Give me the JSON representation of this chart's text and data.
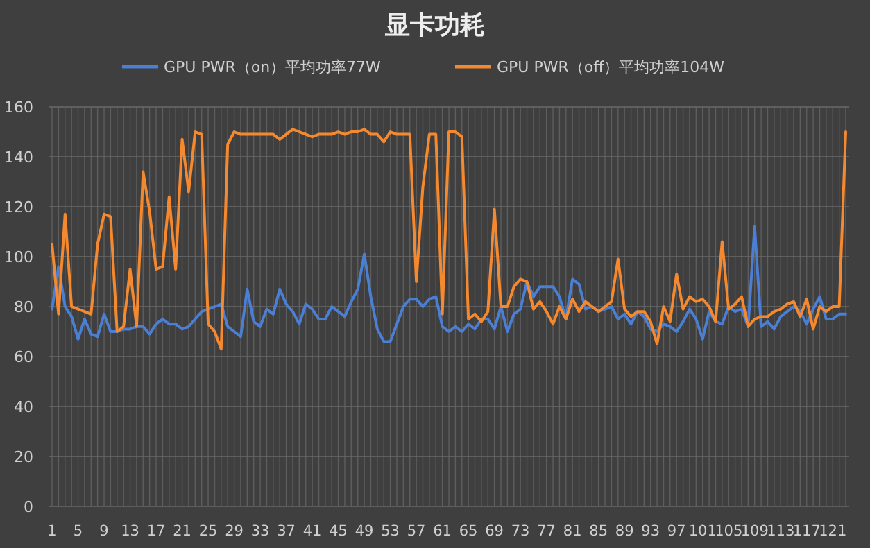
{
  "chart_data": {
    "type": "line",
    "title": "显卡功耗",
    "categories": [
      "1",
      null,
      null,
      null,
      "5",
      null,
      null,
      null,
      "9",
      null,
      null,
      null,
      "13",
      null,
      null,
      null,
      "17",
      null,
      null,
      null,
      "21",
      null,
      null,
      null,
      "25",
      null,
      null,
      null,
      "29",
      null,
      null,
      null,
      "33",
      null,
      null,
      null,
      "37",
      null,
      null,
      null,
      "41",
      null,
      null,
      null,
      "45",
      null,
      null,
      null,
      "49",
      null,
      null,
      null,
      "53",
      null,
      null,
      null,
      "57",
      null,
      null,
      null,
      "61",
      null,
      null,
      null,
      "65",
      null,
      null,
      null,
      "69",
      null,
      null,
      null,
      "73",
      null,
      null,
      null,
      "77",
      null,
      null,
      null,
      "81",
      null,
      null,
      null,
      "85",
      null,
      null,
      null,
      "89",
      null,
      null,
      null,
      "93",
      null,
      null,
      null,
      "97",
      null,
      null,
      null,
      "101",
      null,
      null,
      null,
      "105",
      null,
      null,
      null,
      "109",
      null,
      null,
      null,
      "113",
      null,
      null,
      null,
      "117",
      null,
      null,
      null,
      "121",
      null,
      null
    ],
    "series": [
      {
        "name": "GPU PWR（on）平均功率77W",
        "color": "#4a7fd4",
        "values": [
          79,
          96,
          80,
          76,
          67,
          75,
          69,
          68,
          77,
          70,
          70,
          71,
          71,
          72,
          72,
          69,
          73,
          75,
          73,
          73,
          71,
          72,
          75,
          78,
          79,
          80,
          81,
          72,
          70,
          68,
          87,
          74,
          72,
          79,
          77,
          87,
          81,
          78,
          73,
          81,
          79,
          75,
          75,
          80,
          78,
          76,
          82,
          87,
          101,
          84,
          71,
          66,
          66,
          73,
          80,
          83,
          83,
          80,
          83,
          84,
          72,
          70,
          72,
          70,
          73,
          71,
          75,
          75,
          71,
          80,
          70,
          77,
          79,
          90,
          84,
          88,
          88,
          88,
          84,
          75,
          91,
          89,
          79,
          80,
          78,
          79,
          80,
          75,
          77,
          73,
          78,
          76,
          71,
          70,
          73,
          72,
          70,
          74,
          79,
          75,
          67,
          78,
          74,
          73,
          80,
          78,
          79,
          72,
          112,
          72,
          74,
          71,
          76,
          78,
          80,
          78,
          73,
          79,
          84,
          75,
          75,
          77,
          77
        ]
      },
      {
        "name": "GPU PWR（off）平均功率104W",
        "color": "#f5892f",
        "values": [
          105,
          77,
          117,
          80,
          79,
          78,
          77,
          105,
          117,
          116,
          70,
          72,
          95,
          72,
          134,
          118,
          95,
          96,
          124,
          95,
          147,
          126,
          150,
          149,
          73,
          70,
          63,
          145,
          150,
          149,
          149,
          149,
          149,
          149,
          149,
          147,
          149,
          151,
          150,
          149,
          148,
          149,
          149,
          149,
          150,
          149,
          150,
          150,
          151,
          149,
          149,
          146,
          150,
          149,
          149,
          149,
          90,
          128,
          149,
          149,
          77,
          150,
          150,
          148,
          75,
          77,
          74,
          78,
          119,
          80,
          80,
          88,
          91,
          90,
          79,
          82,
          78,
          73,
          80,
          75,
          83,
          78,
          82,
          80,
          78,
          80,
          82,
          99,
          79,
          76,
          78,
          78,
          74,
          65,
          80,
          74,
          93,
          79,
          84,
          82,
          83,
          80,
          74,
          106,
          79,
          81,
          84,
          72,
          75,
          76,
          76,
          78,
          79,
          81,
          82,
          76,
          83,
          71,
          80,
          78,
          80,
          80,
          150
        ]
      }
    ],
    "ylim": [
      0,
      160
    ],
    "yticks": [
      0,
      20,
      40,
      60,
      80,
      100,
      120,
      140,
      160
    ],
    "grid": true,
    "legend": "top"
  }
}
